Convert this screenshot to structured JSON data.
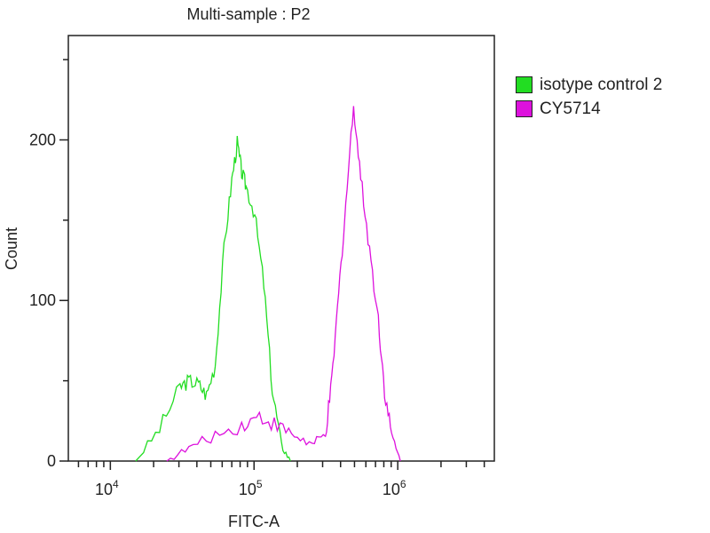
{
  "chart_data": {
    "type": "line",
    "title": "Multi-sample : P2",
    "xlabel": "FITC-A",
    "ylabel": "Count",
    "xscale": "log",
    "xlim": [
      5100,
      4700000
    ],
    "ylim": [
      0,
      265
    ],
    "x_ticks": [
      {
        "value": 10000,
        "base": "10",
        "exp": "4"
      },
      {
        "value": 100000,
        "base": "10",
        "exp": "5"
      },
      {
        "value": 1000000,
        "base": "10",
        "exp": "6"
      }
    ],
    "y_ticks": [
      {
        "value": 0,
        "label": "0"
      },
      {
        "value": 100,
        "label": "100"
      },
      {
        "value": 200,
        "label": "200"
      }
    ],
    "legend_position": "right",
    "series": [
      {
        "name": "isotype control 2",
        "color": "#22dd22",
        "x": [
          15000,
          22000,
          30500,
          35200,
          41000,
          46700,
          53700,
          61800,
          70000,
          76400,
          82000,
          88100,
          101000,
          117000,
          134000,
          155000,
          179000
        ],
        "y": [
          0,
          20,
          46,
          50,
          48,
          41,
          60,
          132,
          175,
          198,
          180,
          171,
          154,
          110,
          44,
          10,
          0
        ]
      },
      {
        "name": "CY5714",
        "color": "#dd11dd",
        "x": [
          24700,
          35200,
          53700,
          82000,
          109000,
          145000,
          191000,
          254000,
          314000,
          347000,
          388000,
          435000,
          493000,
          552000,
          636000,
          733000,
          809000,
          906000,
          1043000
        ],
        "y": [
          0,
          8,
          16,
          22,
          28,
          22,
          16,
          10,
          16,
          49,
          104,
          160,
          222,
          177,
          132,
          88,
          44,
          16,
          0
        ]
      }
    ]
  }
}
